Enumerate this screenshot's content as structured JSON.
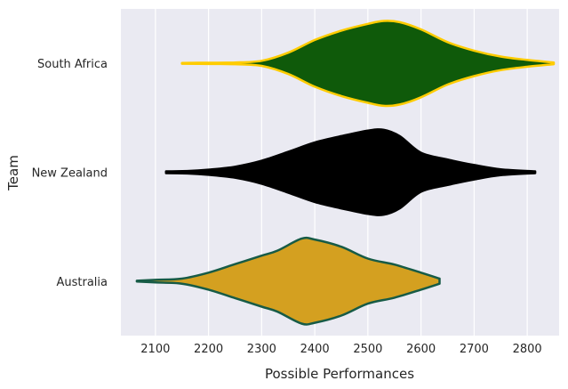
{
  "chart_data": {
    "type": "violin",
    "orientation": "horizontal",
    "xlabel": "Possible Performances",
    "ylabel": "Team",
    "xlim": [
      2035,
      2860
    ],
    "x_ticks": [
      2100,
      2200,
      2300,
      2400,
      2500,
      2600,
      2700,
      2800
    ],
    "x_tick_labels": [
      "2100",
      "2200",
      "2300",
      "2400",
      "2500",
      "2600",
      "2700",
      "2800"
    ],
    "grid": "vertical lines",
    "background": "#eaeaf2",
    "categories": [
      "South Africa",
      "New Zealand",
      "Australia"
    ],
    "series": [
      {
        "name": "South Africa",
        "fill": "#0f5a0a",
        "edge": "#ffcc00",
        "min": 2150,
        "max": 2850,
        "density": [
          [
            2150,
            0.01
          ],
          [
            2200,
            0.015
          ],
          [
            2250,
            0.02
          ],
          [
            2300,
            0.06
          ],
          [
            2350,
            0.25
          ],
          [
            2400,
            0.55
          ],
          [
            2450,
            0.77
          ],
          [
            2500,
            0.93
          ],
          [
            2530,
            1.0
          ],
          [
            2560,
            0.97
          ],
          [
            2600,
            0.8
          ],
          [
            2650,
            0.5
          ],
          [
            2700,
            0.3
          ],
          [
            2750,
            0.16
          ],
          [
            2800,
            0.08
          ],
          [
            2850,
            0.02
          ]
        ]
      },
      {
        "name": "New Zealand",
        "fill": "#000000",
        "edge": "#000000",
        "min": 2120,
        "max": 2815,
        "density": [
          [
            2120,
            0.02
          ],
          [
            2160,
            0.03
          ],
          [
            2200,
            0.06
          ],
          [
            2250,
            0.13
          ],
          [
            2300,
            0.27
          ],
          [
            2350,
            0.48
          ],
          [
            2400,
            0.7
          ],
          [
            2450,
            0.85
          ],
          [
            2500,
            0.98
          ],
          [
            2530,
            1.0
          ],
          [
            2560,
            0.85
          ],
          [
            2600,
            0.46
          ],
          [
            2650,
            0.3
          ],
          [
            2700,
            0.17
          ],
          [
            2750,
            0.07
          ],
          [
            2815,
            0.02
          ]
        ]
      },
      {
        "name": "Australia",
        "fill": "#d4a020",
        "edge": "#175b46",
        "min": 2065,
        "max": 2635,
        "density": [
          [
            2065,
            0.01
          ],
          [
            2100,
            0.03
          ],
          [
            2150,
            0.06
          ],
          [
            2200,
            0.2
          ],
          [
            2250,
            0.4
          ],
          [
            2300,
            0.6
          ],
          [
            2330,
            0.72
          ],
          [
            2375,
            1.0
          ],
          [
            2400,
            0.98
          ],
          [
            2450,
            0.81
          ],
          [
            2500,
            0.53
          ],
          [
            2550,
            0.39
          ],
          [
            2600,
            0.2
          ],
          [
            2635,
            0.06
          ]
        ]
      }
    ]
  }
}
